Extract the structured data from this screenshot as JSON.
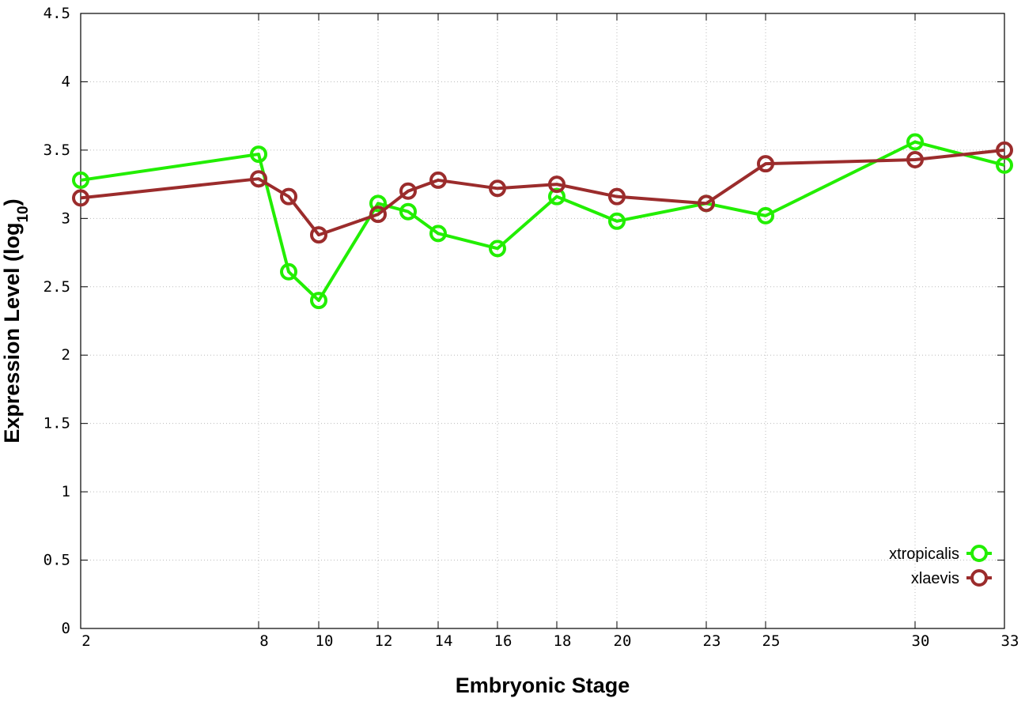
{
  "chart_data": {
    "type": "line",
    "xlabel": "Embryonic Stage",
    "ylabel_main": "Expression Level (log",
    "ylabel_sub": "10",
    "ylabel_close": ")",
    "ylim": [
      0,
      4.5
    ],
    "y_ticks": [
      "0",
      "0.5",
      "1",
      "1.5",
      "2",
      "2.5",
      "3",
      "3.5",
      "4",
      "4.5"
    ],
    "x_stages": [
      2,
      8,
      9,
      10,
      12,
      13,
      14,
      16,
      18,
      20,
      23,
      25,
      30,
      33
    ],
    "x_tick_labels": [
      "2",
      "8",
      "10",
      "12",
      "14",
      "16",
      "18",
      "20",
      "23",
      "25",
      "30",
      "33"
    ],
    "grid": true,
    "legend_position": "bottom-right",
    "series": [
      {
        "name": "xtropicalis",
        "color": "#22ee00",
        "values": [
          3.28,
          3.47,
          2.61,
          2.4,
          3.11,
          3.05,
          2.89,
          2.78,
          3.16,
          2.98,
          3.11,
          3.02,
          3.56,
          3.39
        ]
      },
      {
        "name": "xlaevis",
        "color": "#9b2c2c",
        "values": [
          3.15,
          3.29,
          3.16,
          2.88,
          3.03,
          3.2,
          3.28,
          3.22,
          3.25,
          3.16,
          3.11,
          3.4,
          3.43,
          3.5
        ]
      }
    ]
  }
}
